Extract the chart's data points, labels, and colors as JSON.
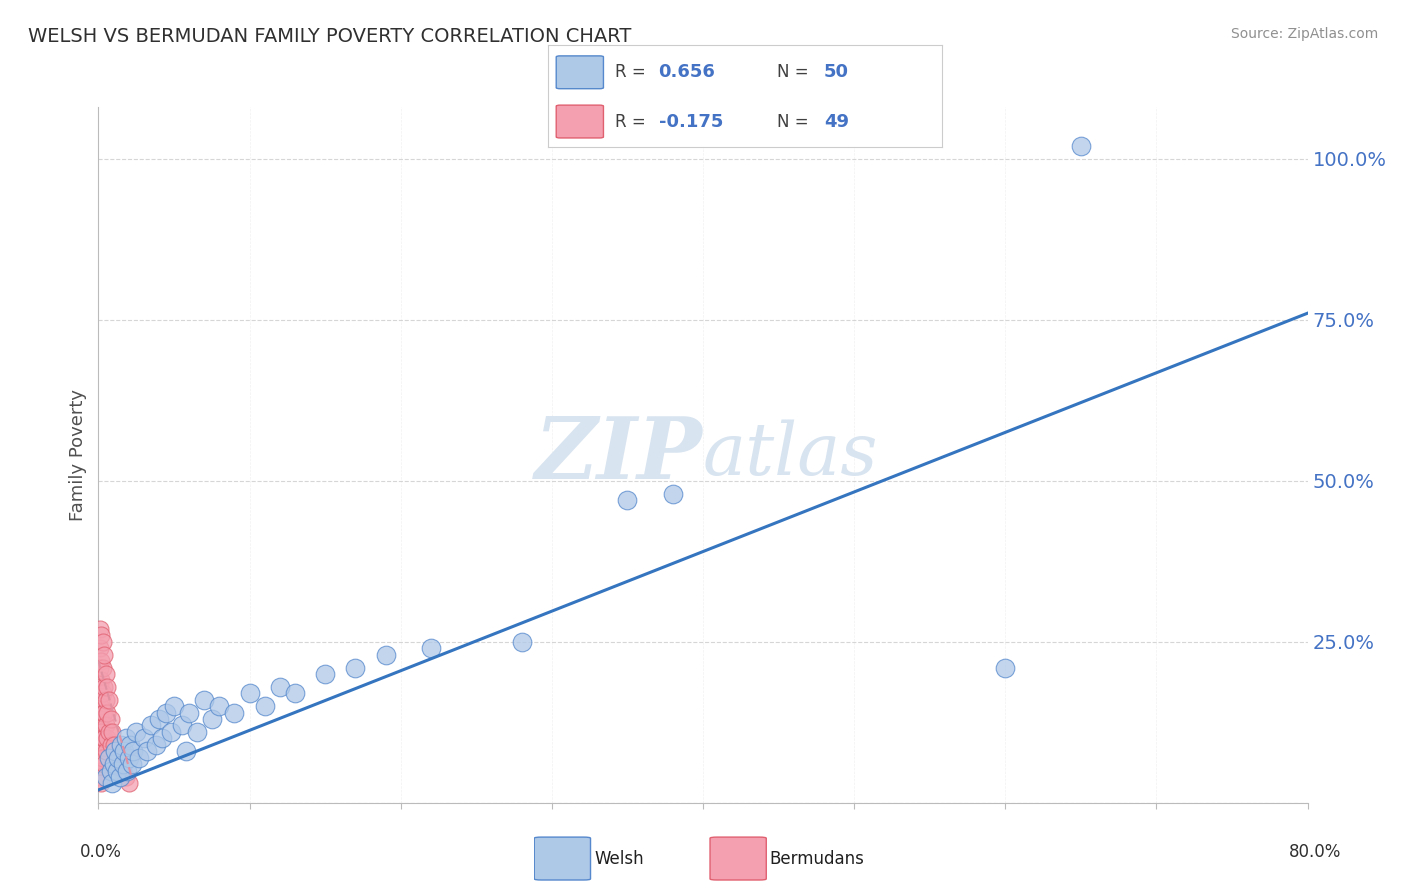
{
  "title": "WELSH VS BERMUDAN FAMILY POVERTY CORRELATION CHART",
  "source": "Source: ZipAtlas.com",
  "ylabel": "Family Poverty",
  "yticks": [
    0.0,
    0.25,
    0.5,
    0.75,
    1.0
  ],
  "ytick_labels": [
    "",
    "25.0%",
    "50.0%",
    "75.0%",
    "100.0%"
  ],
  "xlim": [
    0.0,
    0.8
  ],
  "ylim": [
    0.0,
    1.08
  ],
  "welsh_R": 0.656,
  "welsh_N": 50,
  "bermuda_R": -0.175,
  "bermuda_N": 49,
  "welsh_color": "#aec8e8",
  "bermuda_color": "#f4a0b0",
  "welsh_edge_color": "#5588cc",
  "bermuda_edge_color": "#e06070",
  "welsh_line_color": "#3575c0",
  "bermuda_line_color": "#e090a0",
  "watermark_color": "#d8e4f0",
  "background_color": "#ffffff",
  "title_color": "#303030",
  "source_color": "#909090",
  "tick_label_color": "#4472c4",
  "welsh_line_x0": 0.0,
  "welsh_line_y0": 0.02,
  "welsh_line_x1": 0.8,
  "welsh_line_y1": 0.76,
  "bermuda_line_x0": 0.0,
  "bermuda_line_y0": 0.22,
  "bermuda_line_x1": 0.022,
  "bermuda_line_y1": 0.04,
  "welsh_points": [
    [
      0.005,
      0.04
    ],
    [
      0.007,
      0.07
    ],
    [
      0.008,
      0.05
    ],
    [
      0.009,
      0.03
    ],
    [
      0.01,
      0.06
    ],
    [
      0.011,
      0.08
    ],
    [
      0.012,
      0.05
    ],
    [
      0.013,
      0.07
    ],
    [
      0.014,
      0.04
    ],
    [
      0.015,
      0.09
    ],
    [
      0.016,
      0.06
    ],
    [
      0.017,
      0.08
    ],
    [
      0.018,
      0.1
    ],
    [
      0.019,
      0.05
    ],
    [
      0.02,
      0.07
    ],
    [
      0.021,
      0.09
    ],
    [
      0.022,
      0.06
    ],
    [
      0.023,
      0.08
    ],
    [
      0.025,
      0.11
    ],
    [
      0.027,
      0.07
    ],
    [
      0.03,
      0.1
    ],
    [
      0.032,
      0.08
    ],
    [
      0.035,
      0.12
    ],
    [
      0.038,
      0.09
    ],
    [
      0.04,
      0.13
    ],
    [
      0.042,
      0.1
    ],
    [
      0.045,
      0.14
    ],
    [
      0.048,
      0.11
    ],
    [
      0.05,
      0.15
    ],
    [
      0.055,
      0.12
    ],
    [
      0.058,
      0.08
    ],
    [
      0.06,
      0.14
    ],
    [
      0.065,
      0.11
    ],
    [
      0.07,
      0.16
    ],
    [
      0.075,
      0.13
    ],
    [
      0.08,
      0.15
    ],
    [
      0.09,
      0.14
    ],
    [
      0.1,
      0.17
    ],
    [
      0.11,
      0.15
    ],
    [
      0.12,
      0.18
    ],
    [
      0.13,
      0.17
    ],
    [
      0.15,
      0.2
    ],
    [
      0.17,
      0.21
    ],
    [
      0.19,
      0.23
    ],
    [
      0.22,
      0.24
    ],
    [
      0.28,
      0.25
    ],
    [
      0.35,
      0.47
    ],
    [
      0.38,
      0.48
    ],
    [
      0.6,
      0.21
    ],
    [
      0.65,
      1.02
    ]
  ],
  "bermuda_points": [
    [
      0.001,
      0.27
    ],
    [
      0.001,
      0.24
    ],
    [
      0.002,
      0.26
    ],
    [
      0.002,
      0.22
    ],
    [
      0.001,
      0.21
    ],
    [
      0.002,
      0.19
    ],
    [
      0.001,
      0.18
    ],
    [
      0.002,
      0.16
    ],
    [
      0.001,
      0.15
    ],
    [
      0.002,
      0.13
    ],
    [
      0.001,
      0.12
    ],
    [
      0.002,
      0.11
    ],
    [
      0.001,
      0.1
    ],
    [
      0.002,
      0.09
    ],
    [
      0.001,
      0.08
    ],
    [
      0.002,
      0.07
    ],
    [
      0.001,
      0.06
    ],
    [
      0.002,
      0.05
    ],
    [
      0.001,
      0.04
    ],
    [
      0.002,
      0.03
    ],
    [
      0.003,
      0.25
    ],
    [
      0.003,
      0.21
    ],
    [
      0.003,
      0.17
    ],
    [
      0.003,
      0.14
    ],
    [
      0.003,
      0.1
    ],
    [
      0.003,
      0.07
    ],
    [
      0.004,
      0.23
    ],
    [
      0.004,
      0.18
    ],
    [
      0.004,
      0.14
    ],
    [
      0.004,
      0.1
    ],
    [
      0.004,
      0.06
    ],
    [
      0.005,
      0.2
    ],
    [
      0.005,
      0.16
    ],
    [
      0.005,
      0.12
    ],
    [
      0.005,
      0.08
    ],
    [
      0.006,
      0.18
    ],
    [
      0.006,
      0.14
    ],
    [
      0.006,
      0.1
    ],
    [
      0.007,
      0.16
    ],
    [
      0.007,
      0.11
    ],
    [
      0.008,
      0.13
    ],
    [
      0.008,
      0.09
    ],
    [
      0.009,
      0.11
    ],
    [
      0.01,
      0.09
    ],
    [
      0.012,
      0.07
    ],
    [
      0.014,
      0.06
    ],
    [
      0.016,
      0.05
    ],
    [
      0.018,
      0.04
    ],
    [
      0.02,
      0.03
    ]
  ]
}
